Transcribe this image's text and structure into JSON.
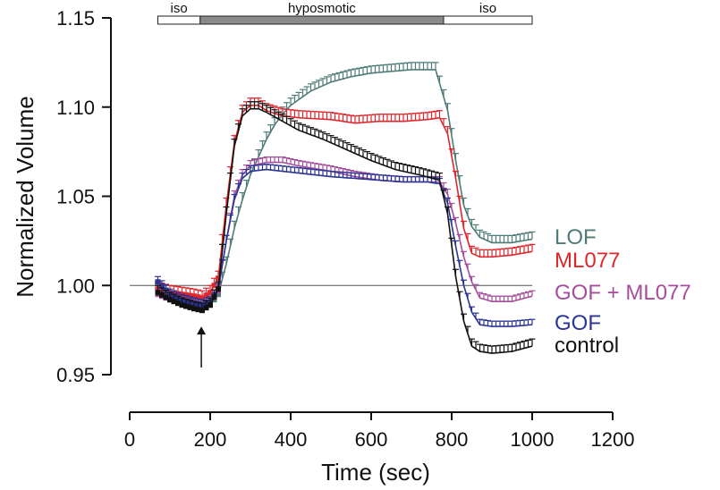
{
  "chart_data": {
    "type": "line",
    "title": "",
    "xlabel": "Time (sec)",
    "ylabel": "Normalized Volume",
    "xlim": [
      0,
      1200
    ],
    "ylim": [
      0.95,
      1.15
    ],
    "x_ticks": [
      0,
      200,
      400,
      600,
      800,
      1000,
      1200
    ],
    "y_ticks": [
      0.95,
      1.0,
      1.05,
      1.1,
      1.15
    ],
    "x_tick_labels": [
      "0",
      "200",
      "400",
      "600",
      "800",
      "1000",
      "1200"
    ],
    "y_tick_labels": [
      "0.95",
      "1.00",
      "1.05",
      "1.10",
      "1.15"
    ],
    "reference_line": 1.0,
    "grid": false,
    "legend_placement": "right, beside series ends",
    "condition_bar": [
      {
        "label": "iso",
        "start": 70,
        "end": 175,
        "fill": "#ffffff"
      },
      {
        "label": "hyposmotic",
        "start": 175,
        "end": 780,
        "fill": "#8a8a8a"
      },
      {
        "label": "iso",
        "start": 780,
        "end": 1000,
        "fill": "#ffffff"
      }
    ],
    "arrow_annotation": {
      "x": 178,
      "y_from": 0.954,
      "y_to": 0.977
    },
    "series": [
      {
        "name": "LOF",
        "color": "#4f7b78",
        "points": [
          [
            70,
            0.997
          ],
          [
            100,
            0.993
          ],
          [
            130,
            0.99
          ],
          [
            160,
            0.988
          ],
          [
            180,
            0.987
          ],
          [
            200,
            0.989
          ],
          [
            220,
            0.995
          ],
          [
            240,
            1.012
          ],
          [
            260,
            1.032
          ],
          [
            280,
            1.048
          ],
          [
            300,
            1.062
          ],
          [
            320,
            1.072
          ],
          [
            340,
            1.082
          ],
          [
            360,
            1.09
          ],
          [
            380,
            1.096
          ],
          [
            400,
            1.101
          ],
          [
            450,
            1.109
          ],
          [
            500,
            1.114
          ],
          [
            550,
            1.117
          ],
          [
            600,
            1.119
          ],
          [
            650,
            1.12
          ],
          [
            700,
            1.121
          ],
          [
            760,
            1.121
          ],
          [
            790,
            1.098
          ],
          [
            810,
            1.07
          ],
          [
            830,
            1.045
          ],
          [
            850,
            1.033
          ],
          [
            870,
            1.027
          ],
          [
            900,
            1.024
          ],
          [
            950,
            1.024
          ],
          [
            1000,
            1.026
          ]
        ],
        "error": 0.004
      },
      {
        "name": "ML077",
        "color": "#e0262d",
        "points": [
          [
            70,
            0.998
          ],
          [
            100,
            0.996
          ],
          [
            130,
            0.995
          ],
          [
            160,
            0.994
          ],
          [
            180,
            0.993
          ],
          [
            200,
            0.996
          ],
          [
            220,
            1.004
          ],
          [
            240,
            1.045
          ],
          [
            260,
            1.08
          ],
          [
            280,
            1.097
          ],
          [
            300,
            1.101
          ],
          [
            320,
            1.101
          ],
          [
            340,
            1.098
          ],
          [
            380,
            1.095
          ],
          [
            420,
            1.094
          ],
          [
            500,
            1.093
          ],
          [
            560,
            1.091
          ],
          [
            620,
            1.092
          ],
          [
            680,
            1.092
          ],
          [
            740,
            1.093
          ],
          [
            770,
            1.094
          ],
          [
            790,
            1.085
          ],
          [
            810,
            1.06
          ],
          [
            830,
            1.032
          ],
          [
            850,
            1.018
          ],
          [
            870,
            1.016
          ],
          [
            900,
            1.016
          ],
          [
            950,
            1.017
          ],
          [
            1000,
            1.019
          ]
        ],
        "error": 0.004
      },
      {
        "name": "GOF + ML077",
        "color": "#a54e9b",
        "points": [
          [
            70,
            0.995
          ],
          [
            100,
            0.992
          ],
          [
            130,
            0.99
          ],
          [
            160,
            0.989
          ],
          [
            180,
            0.988
          ],
          [
            200,
            0.99
          ],
          [
            220,
            0.997
          ],
          [
            240,
            1.025
          ],
          [
            260,
            1.05
          ],
          [
            280,
            1.062
          ],
          [
            300,
            1.067
          ],
          [
            340,
            1.069
          ],
          [
            380,
            1.069
          ],
          [
            420,
            1.067
          ],
          [
            500,
            1.064
          ],
          [
            560,
            1.061
          ],
          [
            620,
            1.059
          ],
          [
            680,
            1.058
          ],
          [
            740,
            1.058
          ],
          [
            770,
            1.058
          ],
          [
            790,
            1.051
          ],
          [
            810,
            1.035
          ],
          [
            830,
            1.016
          ],
          [
            850,
            1.002
          ],
          [
            870,
            0.993
          ],
          [
            900,
            0.991
          ],
          [
            950,
            0.991
          ],
          [
            1000,
            0.994
          ]
        ],
        "error": 0.003
      },
      {
        "name": "GOF",
        "color": "#2b3594",
        "points": [
          [
            70,
            1.002
          ],
          [
            100,
            0.995
          ],
          [
            130,
            0.992
          ],
          [
            160,
            0.99
          ],
          [
            180,
            0.989
          ],
          [
            200,
            0.991
          ],
          [
            220,
            0.998
          ],
          [
            240,
            1.025
          ],
          [
            260,
            1.048
          ],
          [
            280,
            1.06
          ],
          [
            300,
            1.064
          ],
          [
            340,
            1.065
          ],
          [
            380,
            1.064
          ],
          [
            420,
            1.063
          ],
          [
            500,
            1.061
          ],
          [
            560,
            1.06
          ],
          [
            620,
            1.059
          ],
          [
            680,
            1.058
          ],
          [
            740,
            1.058
          ],
          [
            770,
            1.057
          ],
          [
            790,
            1.046
          ],
          [
            810,
            1.022
          ],
          [
            830,
            1.0
          ],
          [
            850,
            0.985
          ],
          [
            870,
            0.978
          ],
          [
            900,
            0.977
          ],
          [
            950,
            0.977
          ],
          [
            1000,
            0.978
          ]
        ],
        "error": 0.003
      },
      {
        "name": "control",
        "color": "#111111",
        "points": [
          [
            70,
            0.996
          ],
          [
            100,
            0.992
          ],
          [
            130,
            0.989
          ],
          [
            160,
            0.987
          ],
          [
            180,
            0.986
          ],
          [
            200,
            0.989
          ],
          [
            220,
            0.998
          ],
          [
            240,
            1.04
          ],
          [
            260,
            1.078
          ],
          [
            280,
            1.095
          ],
          [
            300,
            1.099
          ],
          [
            320,
            1.099
          ],
          [
            340,
            1.097
          ],
          [
            380,
            1.092
          ],
          [
            420,
            1.087
          ],
          [
            480,
            1.082
          ],
          [
            540,
            1.076
          ],
          [
            600,
            1.07
          ],
          [
            660,
            1.065
          ],
          [
            720,
            1.062
          ],
          [
            770,
            1.059
          ],
          [
            790,
            1.04
          ],
          [
            810,
            1.005
          ],
          [
            830,
            0.98
          ],
          [
            850,
            0.966
          ],
          [
            870,
            0.963
          ],
          [
            900,
            0.962
          ],
          [
            950,
            0.963
          ],
          [
            1000,
            0.966
          ]
        ],
        "error": 0.004
      }
    ]
  }
}
